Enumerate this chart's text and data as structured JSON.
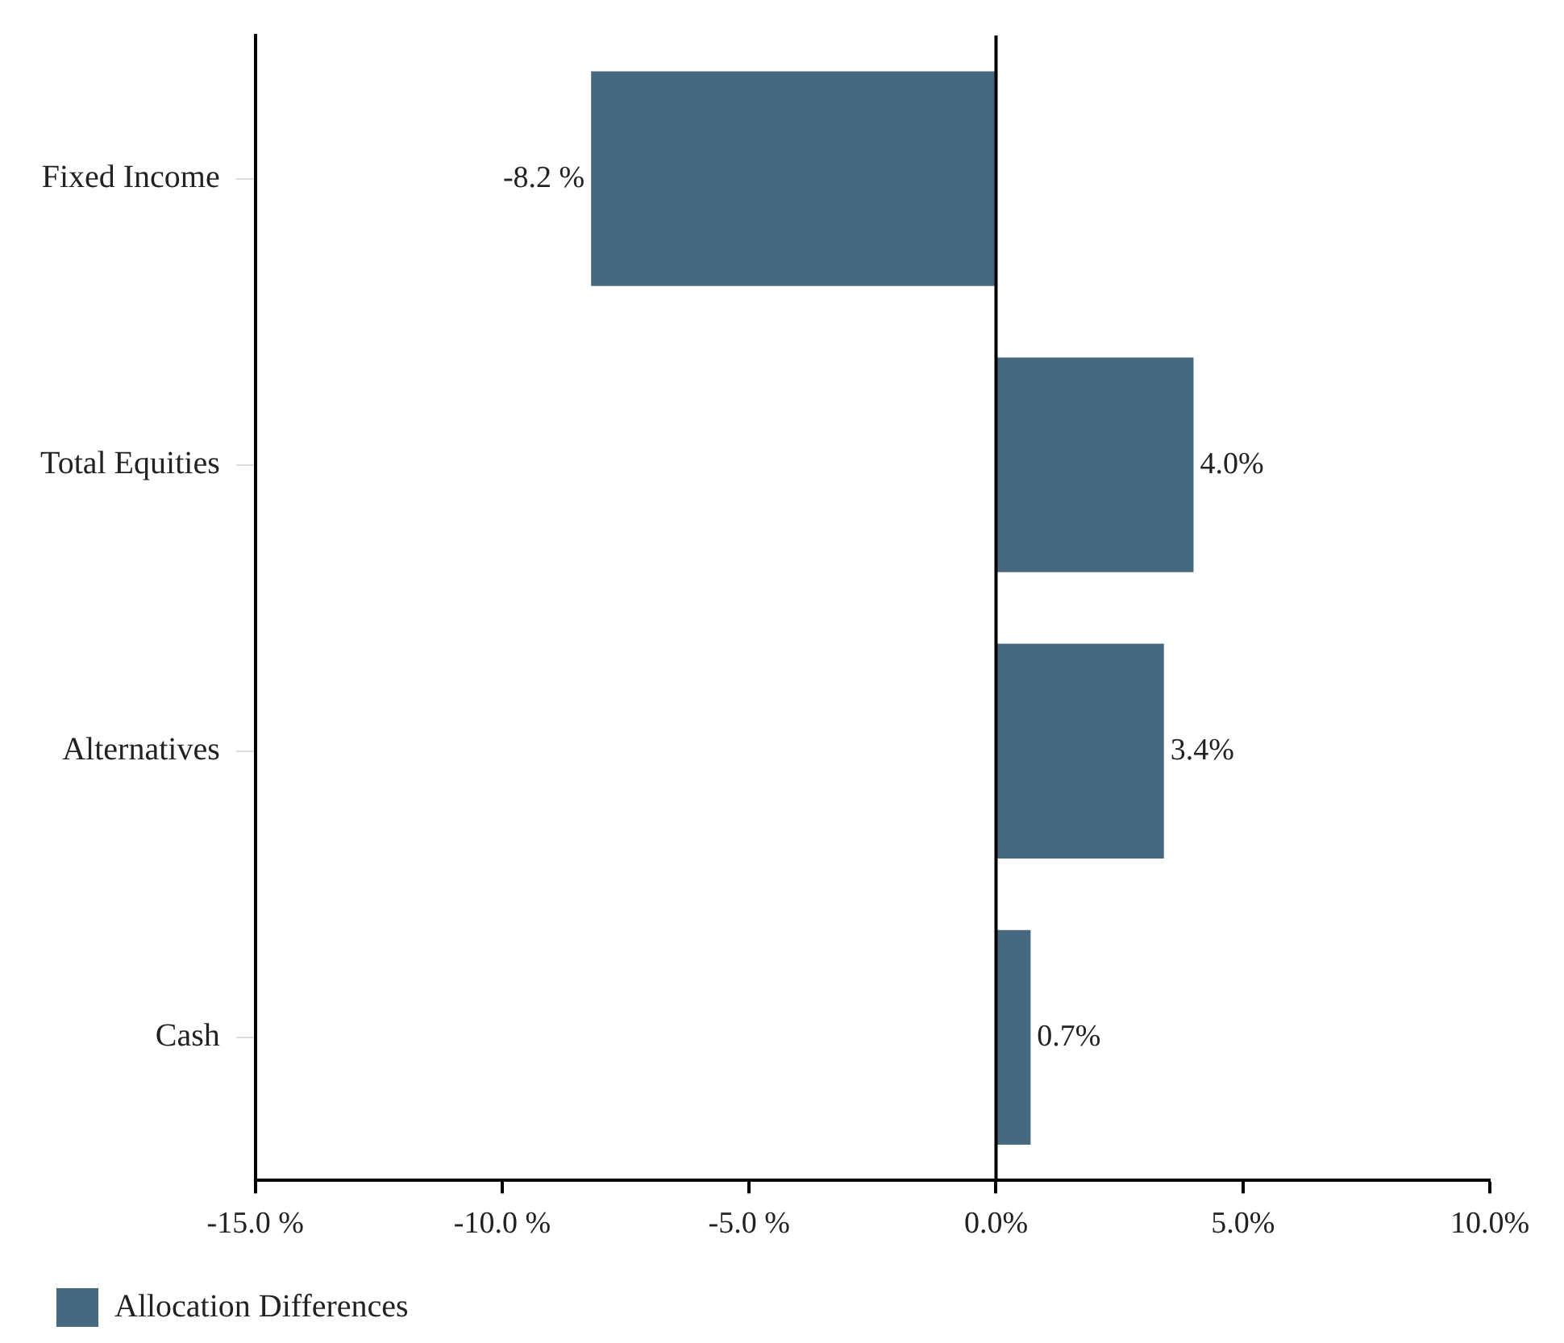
{
  "chart_data": {
    "type": "bar",
    "orientation": "horizontal",
    "categories": [
      "Fixed Income",
      "Total Equities",
      "Alternatives",
      "Cash"
    ],
    "series": [
      {
        "name": "Allocation Differences",
        "color": "#46697f",
        "values": [
          -8.2,
          4.0,
          3.4,
          0.7
        ],
        "value_labels": [
          "-8.2 %",
          "4.0%",
          "3.4%",
          "0.7%"
        ]
      }
    ],
    "xlim": [
      -15,
      10
    ],
    "xticks": [
      {
        "value": -15,
        "label": "-15.0 %"
      },
      {
        "value": -10,
        "label": "-10.0 %"
      },
      {
        "value": -5,
        "label": "-5.0 %"
      },
      {
        "value": 0,
        "label": "0.0%"
      },
      {
        "value": 5,
        "label": "5.0%"
      },
      {
        "value": 10,
        "label": "10.0%"
      }
    ],
    "ref_lines": [
      {
        "axis": "x",
        "value": 0,
        "color": "#000000"
      }
    ],
    "grid": false,
    "legend": "bottom left"
  }
}
